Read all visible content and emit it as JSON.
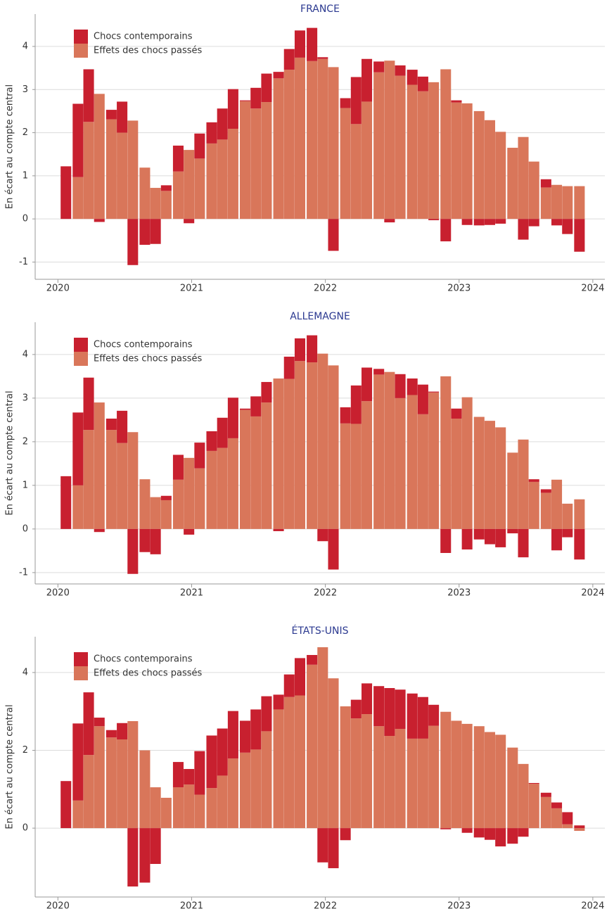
{
  "chart_data": [
    {
      "type": "bar",
      "stacked": true,
      "title": "FRANCE",
      "y_label": "En écart au compte central",
      "x": [
        2020.06,
        2020.15,
        2020.23,
        2020.31,
        2020.4,
        2020.48,
        2020.56,
        2020.65,
        2020.73,
        2020.81,
        2020.9,
        2020.98,
        2021.06,
        2021.15,
        2021.23,
        2021.31,
        2021.4,
        2021.48,
        2021.56,
        2021.65,
        2021.73,
        2021.81,
        2021.9,
        2021.98,
        2022.06,
        2022.15,
        2022.23,
        2022.31,
        2022.4,
        2022.48,
        2022.56,
        2022.65,
        2022.73,
        2022.81,
        2022.9,
        2022.98,
        2023.06,
        2023.15,
        2023.23,
        2023.31,
        2023.4,
        2023.48,
        2023.56,
        2023.65,
        2023.73,
        2023.81,
        2023.9
      ],
      "series": [
        {
          "name": "Chocs contemporains",
          "color": "#c8202f",
          "values": [
            1.22,
            1.7,
            1.22,
            -0.07,
            0.22,
            0.72,
            -1.07,
            -0.6,
            -0.58,
            0.13,
            0.6,
            -0.1,
            0.58,
            0.49,
            0.72,
            0.92,
            0.02,
            0.48,
            0.66,
            0.15,
            0.48,
            0.63,
            0.77,
            0.04,
            -0.74,
            0.23,
            1.09,
            0.99,
            0.25,
            -0.08,
            0.24,
            0.35,
            0.34,
            -0.03,
            -0.52,
            0.05,
            -0.14,
            -0.15,
            -0.14,
            -0.11,
            0,
            -0.48,
            -0.17,
            0.19,
            -0.15,
            -0.35,
            -0.76
          ]
        },
        {
          "name": "Effets des chocs passés",
          "color": "#d9765a",
          "values": [
            0,
            0.97,
            2.25,
            2.9,
            2.31,
            2.0,
            2.28,
            1.19,
            0.72,
            0.65,
            1.1,
            1.6,
            1.4,
            1.75,
            1.84,
            2.09,
            2.73,
            2.56,
            2.71,
            3.26,
            3.46,
            3.74,
            3.66,
            3.71,
            3.52,
            2.57,
            2.2,
            2.72,
            3.4,
            3.67,
            3.32,
            3.11,
            2.96,
            3.17,
            3.47,
            2.7,
            2.68,
            2.5,
            2.29,
            2.02,
            1.65,
            1.9,
            1.33,
            0.73,
            0.79,
            0.76,
            0.76
          ]
        }
      ],
      "xlim": [
        2019.83,
        2024.09
      ],
      "ylim": [
        -1.4,
        4.75
      ],
      "xticks": [
        2020,
        2021,
        2022,
        2023,
        2024
      ],
      "yticks": [
        -1,
        0,
        1,
        2,
        3,
        4
      ],
      "grid": true,
      "legend": "upper left"
    },
    {
      "type": "bar",
      "stacked": true,
      "title": "ALLEMAGNE",
      "y_label": "En écart au compte central",
      "x": [
        2020.06,
        2020.15,
        2020.23,
        2020.31,
        2020.4,
        2020.48,
        2020.56,
        2020.65,
        2020.73,
        2020.81,
        2020.9,
        2020.98,
        2021.06,
        2021.15,
        2021.23,
        2021.31,
        2021.4,
        2021.48,
        2021.56,
        2021.65,
        2021.73,
        2021.81,
        2021.9,
        2021.98,
        2022.06,
        2022.15,
        2022.23,
        2022.31,
        2022.4,
        2022.48,
        2022.56,
        2022.65,
        2022.73,
        2022.81,
        2022.9,
        2022.98,
        2023.06,
        2023.15,
        2023.23,
        2023.31,
        2023.4,
        2023.48,
        2023.56,
        2023.65,
        2023.73,
        2023.81,
        2023.9
      ],
      "series": [
        {
          "name": "Chocs contemporains",
          "color": "#c8202f",
          "values": [
            1.21,
            1.67,
            1.2,
            -0.07,
            0.26,
            0.74,
            -1.03,
            -0.53,
            -0.58,
            0.1,
            0.57,
            -0.13,
            0.59,
            0.45,
            0.69,
            0.93,
            0.03,
            0.46,
            0.47,
            -0.05,
            0.51,
            0.52,
            0.62,
            -0.28,
            -0.93,
            0.37,
            0.88,
            0.77,
            0.13,
            0,
            0.55,
            0.38,
            0.68,
            0.02,
            -0.55,
            0.23,
            -0.47,
            -0.24,
            -0.35,
            -0.42,
            -0.1,
            -0.65,
            0.06,
            0.08,
            -0.49,
            -0.19,
            -0.7
          ]
        },
        {
          "name": "Effets des chocs passés",
          "color": "#d9765a",
          "values": [
            0,
            1.0,
            2.27,
            2.9,
            2.27,
            1.97,
            2.22,
            1.14,
            0.73,
            0.66,
            1.13,
            1.63,
            1.39,
            1.79,
            1.86,
            2.08,
            2.73,
            2.58,
            2.9,
            3.45,
            3.44,
            3.85,
            3.82,
            4.02,
            3.75,
            2.42,
            2.41,
            2.93,
            3.54,
            3.6,
            3.0,
            3.07,
            2.63,
            3.13,
            3.5,
            2.53,
            3.02,
            2.57,
            2.48,
            2.33,
            1.75,
            2.05,
            1.08,
            0.83,
            1.13,
            0.58,
            0.68
          ]
        }
      ],
      "xlim": [
        2019.83,
        2024.09
      ],
      "ylim": [
        -1.26,
        4.74
      ],
      "xticks": [
        2020,
        2021,
        2022,
        2023,
        2024
      ],
      "yticks": [
        -1,
        0,
        1,
        2,
        3,
        4
      ],
      "grid": true,
      "legend": "upper left"
    },
    {
      "type": "bar",
      "stacked": true,
      "title": "ÉTATS-UNIS",
      "y_label": "En écart au compte central",
      "x": [
        2020.06,
        2020.15,
        2020.23,
        2020.31,
        2020.4,
        2020.48,
        2020.56,
        2020.65,
        2020.73,
        2020.81,
        2020.9,
        2020.98,
        2021.06,
        2021.15,
        2021.23,
        2021.31,
        2021.4,
        2021.48,
        2021.56,
        2021.65,
        2021.73,
        2021.81,
        2021.9,
        2021.98,
        2022.06,
        2022.15,
        2022.23,
        2022.31,
        2022.4,
        2022.48,
        2022.56,
        2022.65,
        2022.73,
        2022.81,
        2022.9,
        2022.98,
        2023.06,
        2023.15,
        2023.23,
        2023.31,
        2023.4,
        2023.48,
        2023.56,
        2023.65,
        2023.73,
        2023.81,
        2023.9
      ],
      "series": [
        {
          "name": "Chocs contemporains",
          "color": "#c8202f",
          "values": [
            1.21,
            1.98,
            1.61,
            0.22,
            0.19,
            0.42,
            -1.5,
            -1.4,
            -0.92,
            0,
            0.65,
            0.4,
            1.12,
            1.35,
            1.21,
            1.22,
            0.82,
            1.03,
            0.9,
            0.38,
            0.58,
            0.96,
            0.25,
            -0.88,
            -1.03,
            -0.31,
            0.48,
            0.79,
            1.03,
            1.23,
            1.01,
            1.16,
            1.07,
            0.54,
            -0.03,
            0,
            -0.12,
            -0.24,
            -0.3,
            -0.47,
            -0.4,
            -0.22,
            0.02,
            0.11,
            0.15,
            0.31,
            0.07
          ]
        },
        {
          "name": "Effets des chocs passés",
          "color": "#d9765a",
          "values": [
            0,
            0.71,
            1.88,
            2.62,
            2.33,
            2.28,
            2.75,
            2.0,
            1.05,
            0.78,
            1.05,
            1.12,
            0.86,
            1.03,
            1.35,
            1.79,
            1.94,
            2.02,
            2.49,
            3.05,
            3.37,
            3.41,
            4.2,
            4.65,
            3.85,
            3.13,
            2.82,
            2.93,
            2.62,
            2.37,
            2.55,
            2.3,
            2.3,
            2.63,
            2.99,
            2.76,
            2.68,
            2.62,
            2.47,
            2.4,
            2.07,
            1.65,
            1.14,
            0.8,
            0.51,
            0.1,
            -0.07
          ]
        }
      ],
      "xlim": [
        2019.83,
        2024.09
      ],
      "ylim": [
        -1.77,
        4.92
      ],
      "xticks": [
        2020,
        2021,
        2022,
        2023,
        2024
      ],
      "yticks": [
        0,
        2,
        4
      ],
      "grid": true,
      "legend": "upper left"
    }
  ]
}
